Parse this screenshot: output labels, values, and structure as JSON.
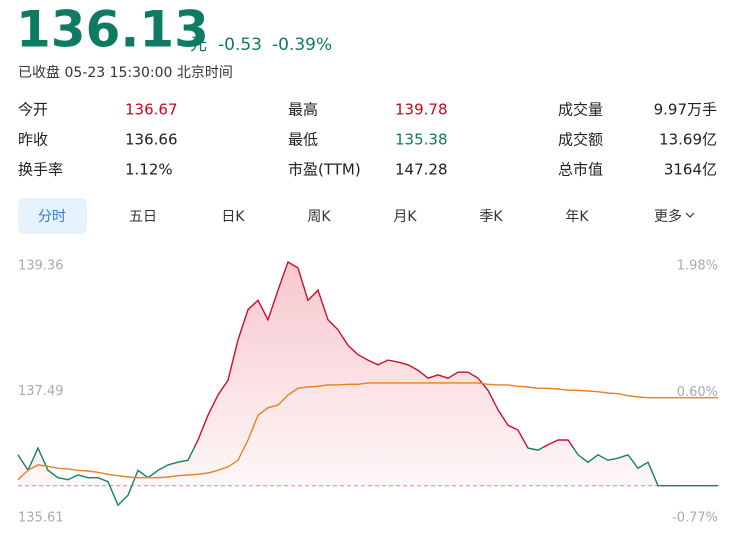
{
  "quote": {
    "price": "136.13",
    "unit": "元",
    "change": "-0.53",
    "change_pct": "-0.39%",
    "status": "已收盘 05-23 15:30:00 北京时间"
  },
  "stats": {
    "rows": [
      [
        {
          "label": "今开",
          "value": "136.67",
          "color": "#d0021b"
        },
        {
          "label": "最高",
          "value": "139.78",
          "color": "#d0021b"
        },
        {
          "label": "成交量",
          "value": "9.97万手"
        }
      ],
      [
        {
          "label": "昨收",
          "value": "136.66"
        },
        {
          "label": "最低",
          "value": "135.38",
          "color": "#0f7b5c"
        },
        {
          "label": "成交额",
          "value": "13.69亿"
        }
      ],
      [
        {
          "label": "换手率",
          "value": "1.12%"
        },
        {
          "label": "市盈(TTM)",
          "value": "147.28"
        },
        {
          "label": "总市值",
          "value": "3164亿"
        }
      ]
    ]
  },
  "tabs": {
    "items": [
      "分时",
      "五日",
      "日K",
      "周K",
      "月K",
      "季K",
      "年K",
      "更多"
    ],
    "active": 0
  },
  "chart_data": {
    "type": "line",
    "ylim": [
      135.61,
      139.36
    ],
    "yticks": [
      135.61,
      137.49,
      139.36
    ],
    "y2lim": [
      -0.77,
      1.98
    ],
    "y2ticks": [
      {
        "value": -0.77,
        "label": "-0.77%"
      },
      {
        "value": 0.6,
        "label": "0.60%"
      },
      {
        "value": 1.98,
        "label": "1.98%"
      }
    ],
    "baseline": 136.09,
    "up_down_threshold": 136.66,
    "up_color": "#c8102e",
    "down_color": "#13806a",
    "series": [
      {
        "color": "#c8102e",
        "values": [
          136.55,
          136.32,
          136.65,
          136.32,
          136.21,
          136.18,
          136.25,
          136.21,
          136.21,
          136.15,
          135.8,
          135.95,
          136.32,
          136.21,
          136.32,
          136.4,
          136.44,
          136.47,
          136.77,
          137.14,
          137.44,
          137.66,
          138.26,
          138.71,
          138.85,
          138.56,
          139.0,
          139.42,
          139.33,
          138.85,
          139.0,
          138.56,
          138.41,
          138.18,
          138.04,
          137.96,
          137.89,
          137.96,
          137.93,
          137.89,
          137.81,
          137.69,
          137.74,
          137.69,
          137.78,
          137.78,
          137.69,
          137.51,
          137.22,
          136.99,
          136.92,
          136.65,
          136.62,
          136.7,
          136.77,
          136.77,
          136.55,
          136.44,
          136.55,
          136.47,
          136.5,
          136.55,
          136.35,
          136.44,
          136.09,
          136.09,
          136.09,
          136.09,
          136.09,
          136.09,
          136.09
        ]
      },
      {
        "color": "#e8811f",
        "values": [
          136.18,
          136.32,
          136.4,
          136.38,
          136.35,
          136.34,
          136.32,
          136.31,
          136.29,
          136.26,
          136.24,
          136.22,
          136.21,
          136.21,
          136.21,
          136.22,
          136.24,
          136.25,
          136.26,
          136.28,
          136.32,
          136.37,
          136.47,
          136.77,
          137.14,
          137.25,
          137.29,
          137.44,
          137.54,
          137.56,
          137.57,
          137.59,
          137.59,
          137.6,
          137.6,
          137.62,
          137.62,
          137.62,
          137.62,
          137.62,
          137.62,
          137.62,
          137.62,
          137.62,
          137.62,
          137.62,
          137.62,
          137.6,
          137.59,
          137.59,
          137.57,
          137.56,
          137.54,
          137.54,
          137.53,
          137.51,
          137.51,
          137.5,
          137.49,
          137.47,
          137.46,
          137.43,
          137.41,
          137.4,
          137.4,
          137.4,
          137.4,
          137.4,
          137.4,
          137.4,
          137.4
        ]
      }
    ]
  }
}
